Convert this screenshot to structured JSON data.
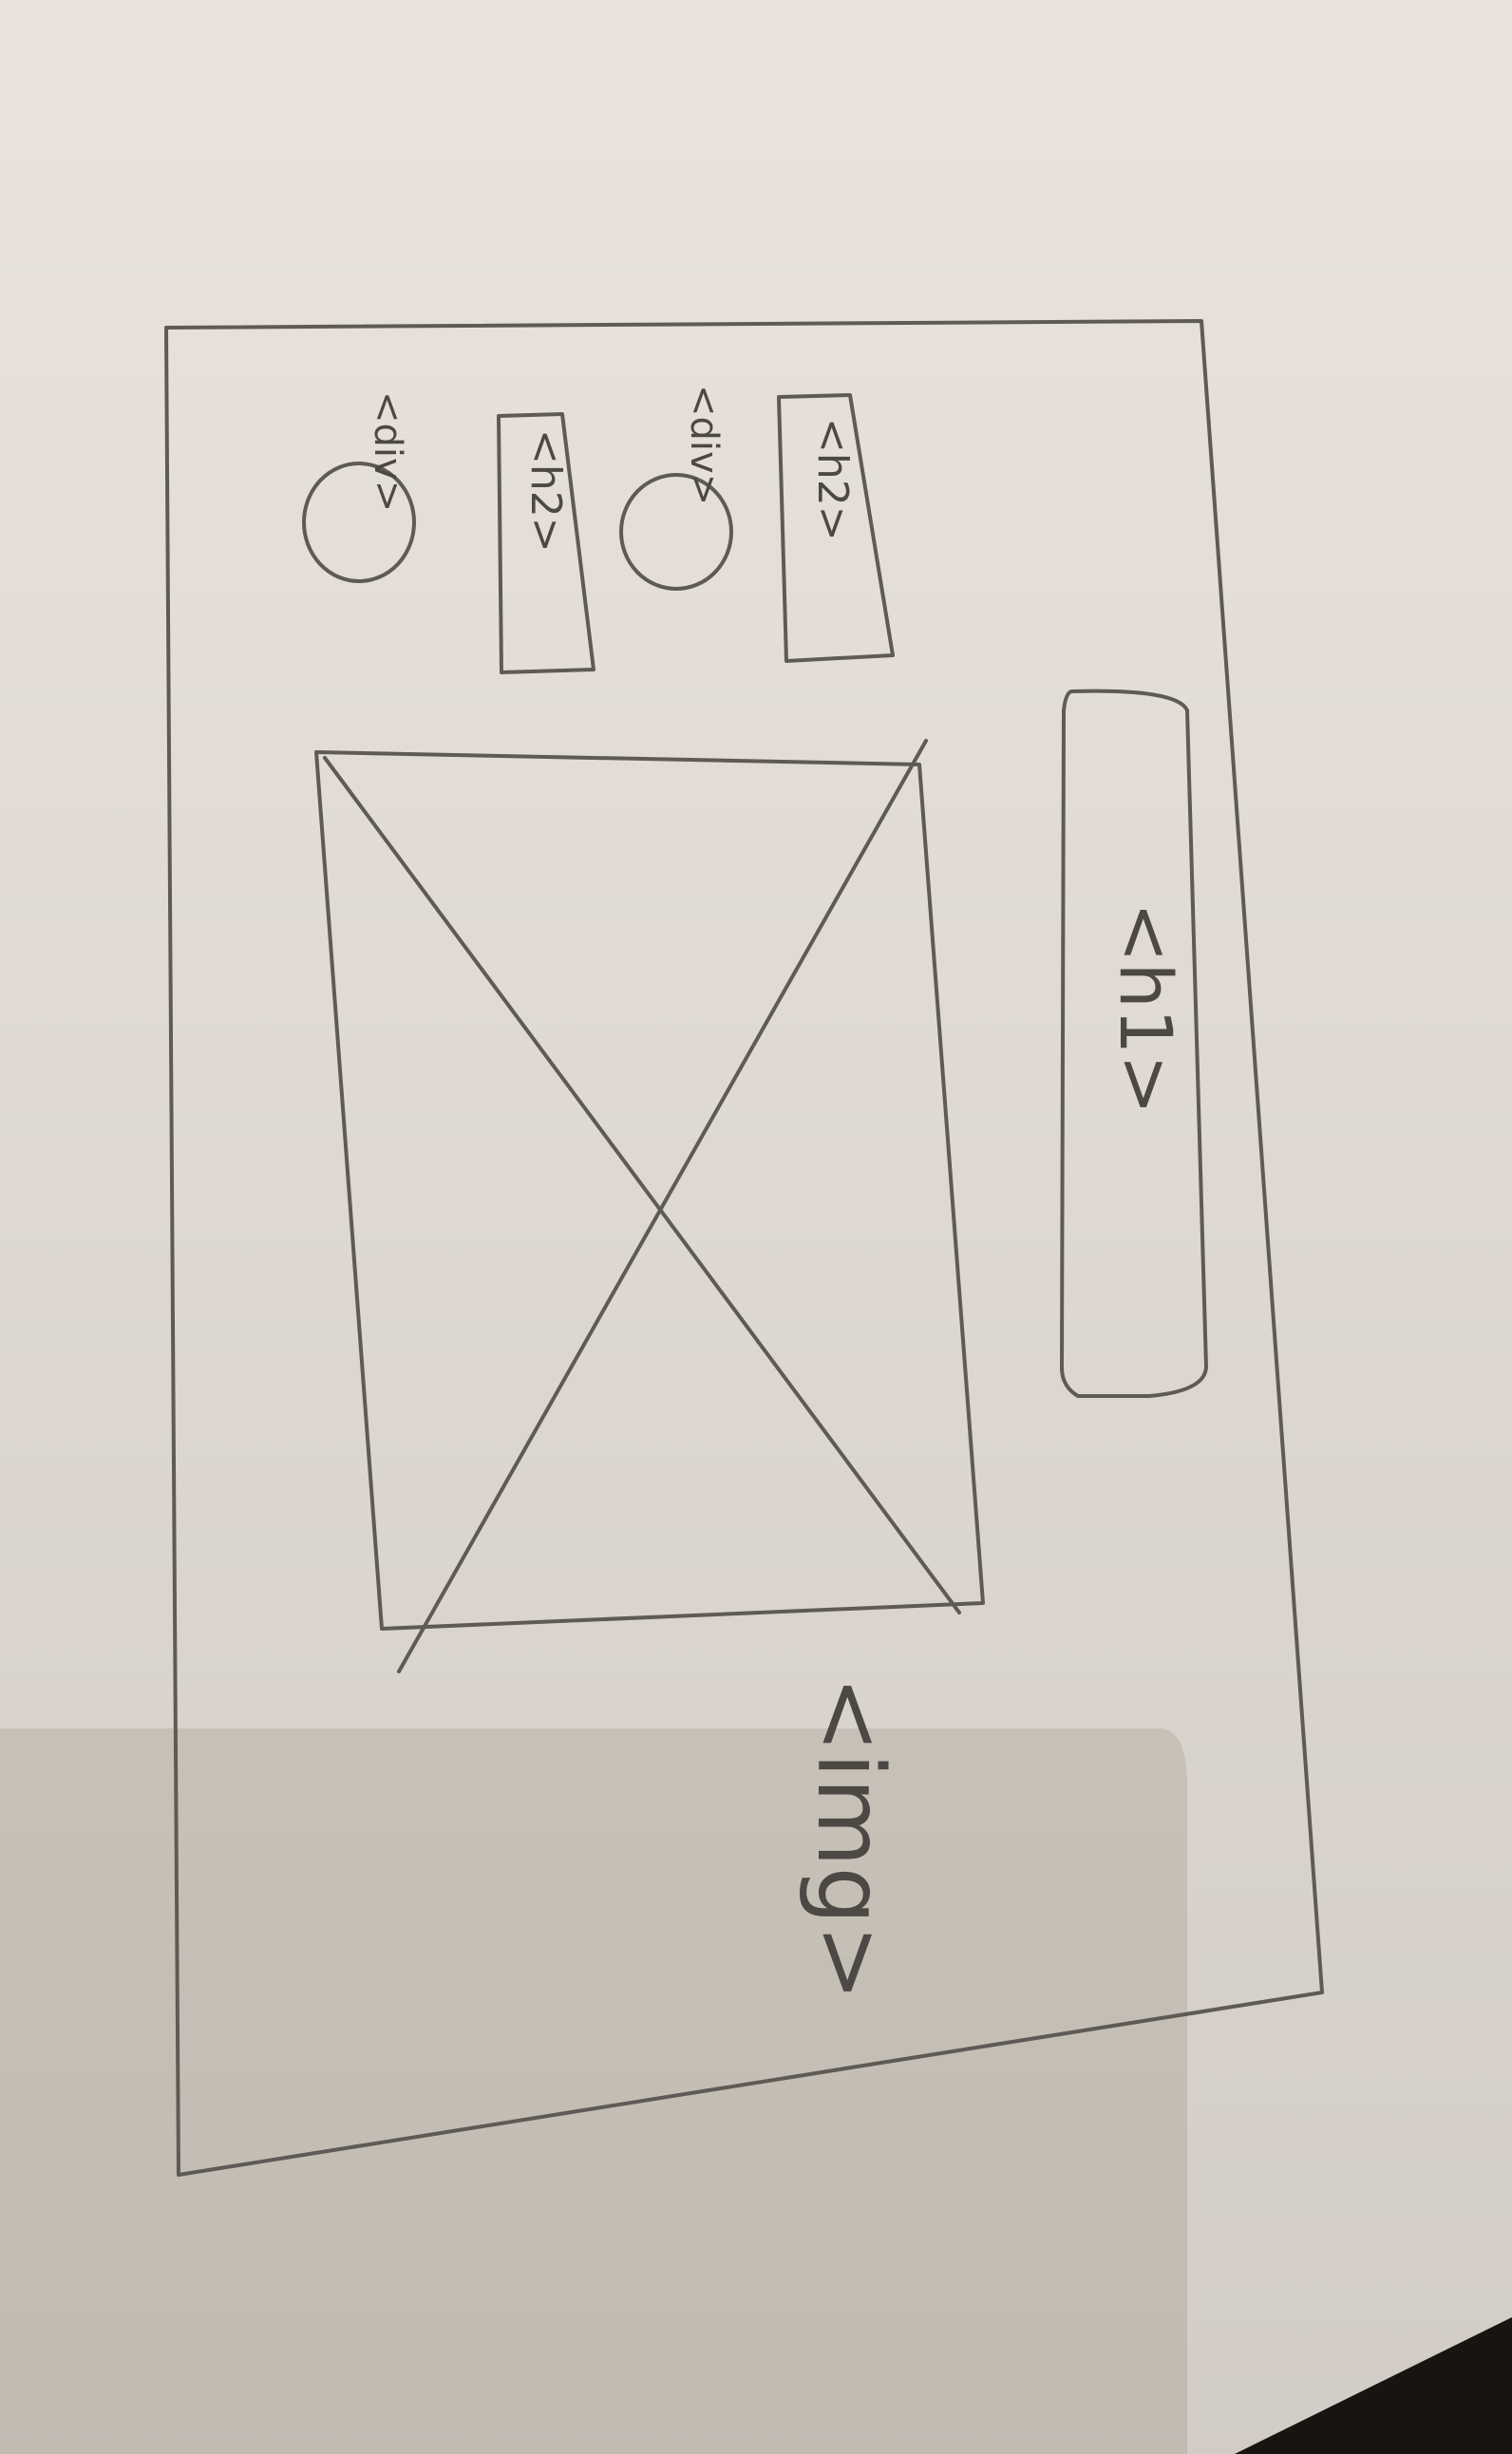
{
  "sketch": {
    "elements": [
      {
        "tag": "<div>"
      },
      {
        "tag": "<h2>"
      },
      {
        "tag": "<div>"
      },
      {
        "tag": "<h2>"
      },
      {
        "tag": "<h1>"
      },
      {
        "tag": "<img>"
      }
    ]
  },
  "colors": {
    "paper": "#e9e3db",
    "pencil": "#5e5a55",
    "shadow": "#cfc8be",
    "background": "#1a1613"
  }
}
